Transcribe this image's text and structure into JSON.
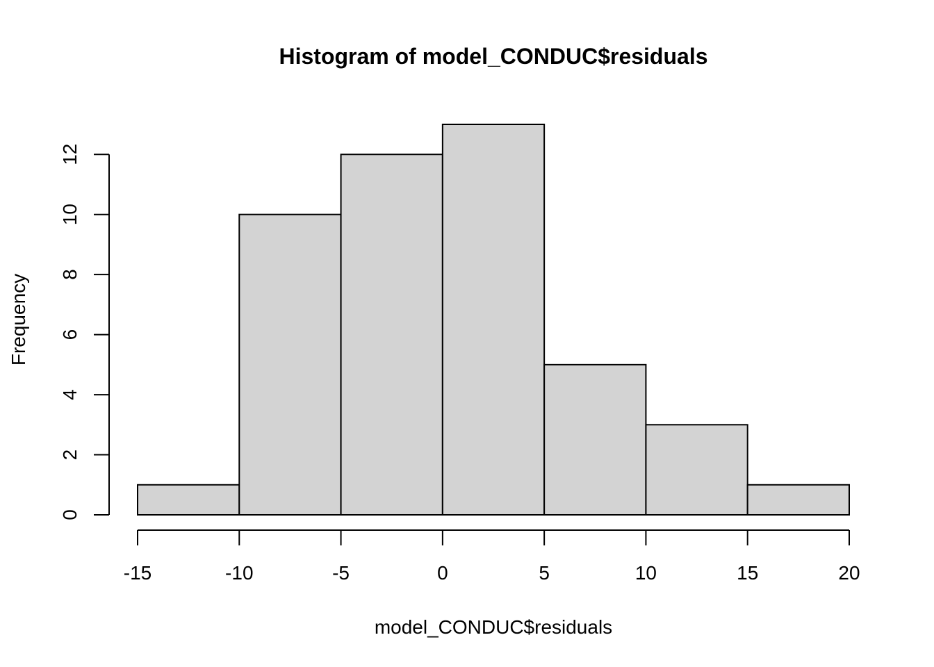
{
  "chart_data": {
    "type": "bar",
    "title": "Histogram of model_CONDUC$residuals",
    "xlabel": "model_CONDUC$residuals",
    "ylabel": "Frequency",
    "bins": [
      {
        "from": -15,
        "to": -10,
        "count": 1
      },
      {
        "from": -10,
        "to": -5,
        "count": 10
      },
      {
        "from": -5,
        "to": 0,
        "count": 12
      },
      {
        "from": 0,
        "to": 5,
        "count": 13
      },
      {
        "from": 5,
        "to": 10,
        "count": 5
      },
      {
        "from": 10,
        "to": 15,
        "count": 3
      },
      {
        "from": 15,
        "to": 20,
        "count": 1
      }
    ],
    "x_ticks": [
      -15,
      -10,
      -5,
      0,
      5,
      10,
      15,
      20
    ],
    "y_ticks": [
      0,
      2,
      4,
      6,
      8,
      10,
      12
    ],
    "xlim": [
      -15,
      20
    ],
    "ylim": [
      0,
      13
    ],
    "grid": false,
    "bar_fill": "#d3d3d3",
    "bar_stroke": "#000000"
  }
}
